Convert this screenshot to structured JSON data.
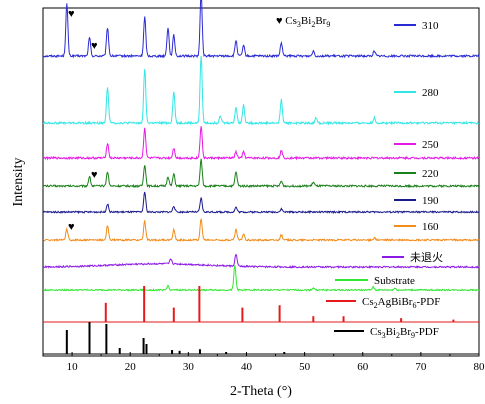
{
  "chart_data": {
    "type": "line",
    "xlabel": "2-Theta (°)",
    "ylabel": "Intensity",
    "xlim": [
      5,
      80
    ],
    "x_ticks": [
      10,
      20,
      30,
      40,
      50,
      60,
      70,
      80
    ],
    "legend_placement": "right, beside each curve",
    "annotation": "♥ Cs3Bi2Br9",
    "series": [
      {
        "name": "310",
        "color": "#2a2ad4",
        "peaks": [
          [
            9.1,
            1.0
          ],
          [
            13.0,
            0.35
          ],
          [
            16.1,
            0.55
          ],
          [
            22.5,
            0.75
          ],
          [
            26.5,
            0.55
          ],
          [
            27.5,
            0.4
          ],
          [
            32.2,
            1.2
          ],
          [
            38.2,
            0.3
          ],
          [
            39.5,
            0.2
          ],
          [
            46.0,
            0.25
          ],
          [
            51.5,
            0.1
          ],
          [
            62.0,
            0.1
          ]
        ]
      },
      {
        "name": "280",
        "color": "#33e6e6",
        "peaks": [
          [
            16.1,
            0.7
          ],
          [
            22.5,
            1.05
          ],
          [
            27.5,
            0.6
          ],
          [
            32.2,
            1.3
          ],
          [
            35.5,
            0.15
          ],
          [
            38.2,
            0.3
          ],
          [
            39.5,
            0.35
          ],
          [
            46.0,
            0.45
          ],
          [
            52.0,
            0.1
          ],
          [
            62.0,
            0.1
          ]
        ]
      },
      {
        "name": "250",
        "color": "#e619e6",
        "peaks": [
          [
            16.1,
            0.3
          ],
          [
            22.5,
            0.6
          ],
          [
            27.5,
            0.2
          ],
          [
            32.2,
            0.65
          ],
          [
            38.2,
            0.12
          ],
          [
            39.5,
            0.12
          ],
          [
            46.0,
            0.15
          ]
        ]
      },
      {
        "name": "220",
        "color": "#1a801a",
        "peaks": [
          [
            13.0,
            0.2
          ],
          [
            16.1,
            0.3
          ],
          [
            22.5,
            0.45
          ],
          [
            26.5,
            0.2
          ],
          [
            27.5,
            0.25
          ],
          [
            32.2,
            0.55
          ],
          [
            38.2,
            0.3
          ],
          [
            46.0,
            0.1
          ],
          [
            51.5,
            0.08
          ]
        ]
      },
      {
        "name": "190",
        "color": "#1a1a8c",
        "peaks": [
          [
            16.1,
            0.2
          ],
          [
            22.5,
            0.5
          ],
          [
            27.5,
            0.15
          ],
          [
            32.2,
            0.35
          ],
          [
            38.2,
            0.12
          ],
          [
            46.0,
            0.08
          ]
        ]
      },
      {
        "name": "160",
        "color": "#f28c1a",
        "peaks": [
          [
            9.1,
            0.25
          ],
          [
            16.1,
            0.35
          ],
          [
            22.5,
            0.45
          ],
          [
            27.5,
            0.25
          ],
          [
            32.2,
            0.5
          ],
          [
            38.2,
            0.25
          ],
          [
            39.5,
            0.15
          ],
          [
            46.0,
            0.12
          ],
          [
            62.0,
            0.05
          ]
        ]
      },
      {
        "name": "未退火",
        "color": "#8c1ae6",
        "peaks": [
          [
            27.0,
            0.12
          ],
          [
            38.2,
            0.3
          ]
        ]
      },
      {
        "name": "Substrate",
        "color": "#33e633",
        "peaks": [
          [
            26.5,
            0.12
          ],
          [
            38.0,
            0.7
          ],
          [
            51.5,
            0.06
          ],
          [
            61.8,
            0.08
          ],
          [
            65.5,
            0.05
          ]
        ]
      },
      {
        "name": "Cs2AgBiBr6-PDF",
        "color": "#e61a1a",
        "peaks": [
          [
            15.8,
            0.4
          ],
          [
            22.4,
            0.75
          ],
          [
            27.5,
            0.3
          ],
          [
            31.9,
            0.75
          ],
          [
            39.3,
            0.3
          ],
          [
            45.7,
            0.35
          ],
          [
            51.5,
            0.12
          ],
          [
            56.7,
            0.12
          ],
          [
            66.6,
            0.08
          ],
          [
            75.6,
            0.05
          ]
        ]
      },
      {
        "name": "Cs3Bi2Br9-PDF",
        "color": "#000000",
        "peaks": [
          [
            9.1,
            0.6
          ],
          [
            13.0,
            0.8
          ],
          [
            15.9,
            0.75
          ],
          [
            18.2,
            0.15
          ],
          [
            22.3,
            0.4
          ],
          [
            22.8,
            0.25
          ],
          [
            27.2,
            0.1
          ],
          [
            28.5,
            0.08
          ],
          [
            32.0,
            0.12
          ],
          [
            36.5,
            0.05
          ],
          [
            46.5,
            0.05
          ]
        ]
      }
    ]
  },
  "labels": {
    "xlabel": "2-Theta (°)",
    "ylabel": "Intensity",
    "annotation_prefix": "♥ Cs",
    "annotation_sub1": "3",
    "annotation_mid": "Bi",
    "annotation_sub2": "2",
    "annotation_end": "Br",
    "annotation_sub3": "9",
    "legend": {
      "l310": "310",
      "l280": "280",
      "l250": "250",
      "l220": "220",
      "l190": "190",
      "l160": "160",
      "lunannealed": "未退火",
      "lsubstrate": "Substrate",
      "lcs2agbibr6_a": "Cs",
      "lcs2agbibr6_s1": "2",
      "lcs2agbibr6_b": "AgBiBr",
      "lcs2agbibr6_s2": "6",
      "lcs2agbibr6_c": "-PDF",
      "lcs3bi2br9_a": "Cs",
      "lcs3bi2br9_s1": "3",
      "lcs3bi2br9_b": "Bi",
      "lcs3bi2br9_s2": "2",
      "lcs3bi2br9_c": "Br",
      "lcs3bi2br9_s3": "9",
      "lcs3bi2br9_d": "-PDF"
    }
  }
}
